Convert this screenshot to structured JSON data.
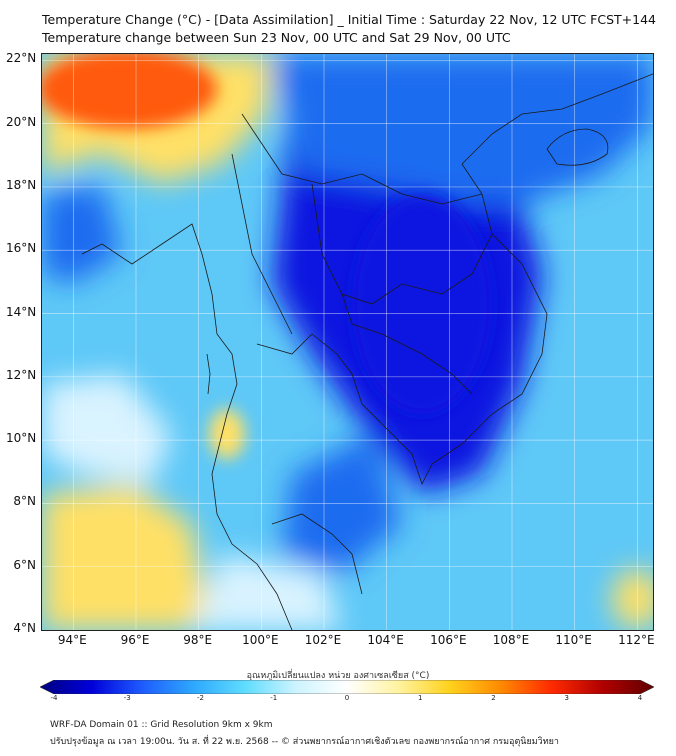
{
  "header": {
    "title": "Temperature Change (°C) - [Data Assimilation] _ Initial Time : Saturday 22 Nov, 12 UTC FCST+144",
    "subtitle": "Temperature change between Sun 23 Nov, 00 UTC and Sat 29 Nov, 00 UTC"
  },
  "map": {
    "extent": {
      "lon_min": 93,
      "lon_max": 112.5,
      "lat_min": 4,
      "lat_max": 22.2
    },
    "lat_labels": [
      "22°N",
      "20°N",
      "18°N",
      "16°N",
      "14°N",
      "12°N",
      "10°N",
      "8°N",
      "6°N",
      "4°N"
    ],
    "lon_labels": [
      "94°E",
      "96°E",
      "98°E",
      "100°E",
      "102°E",
      "104°E",
      "106°E",
      "108°E",
      "110°E",
      "112°E"
    ],
    "grid": true,
    "colors": {
      "strong_cooling": "#0a17e0",
      "moderate_cooling": "#1f6cf0",
      "light_cooling": "#5ec8f7",
      "near_zero": "#d9f3ff",
      "warming": "#ffe066",
      "strong_warming": "#ff5a10",
      "border_lines": "#1a1a1a"
    }
  },
  "colorbar": {
    "label": "อุณหภูมิเปลี่ยนแปลง หน่วย องศาเซลเซียส (°C)",
    "ticks": [
      "-4",
      "-3",
      "-2",
      "-1",
      "0",
      "1",
      "2",
      "3",
      "4"
    ],
    "stops": [
      "#000080",
      "#0000d8",
      "#1e5cff",
      "#2ea8ff",
      "#5fdcff",
      "#cdf4ff",
      "#ffffff",
      "#fff3a0",
      "#ffd21e",
      "#ff8a00",
      "#ff2a00",
      "#b00000",
      "#600000"
    ]
  },
  "footer": {
    "line1": "WRF-DA Domain 01 :: Grid Resolution 9km x 9km",
    "line2": "ปรับปรุงข้อมูล ณ เวลา 19:00น. วัน ส. ที่ 22 พ.ย. 2568 -- © ส่วนพยากรณ์อากาศเชิงตัวเลข กองพยากรณ์อากาศ กรมอุตุนิยมวิทยา"
  }
}
